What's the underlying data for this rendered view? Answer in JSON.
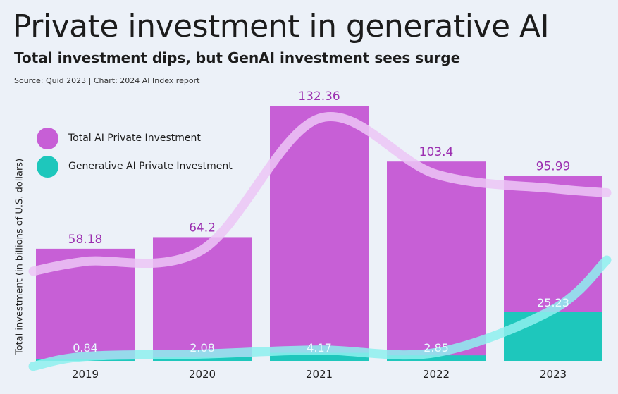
{
  "chart_data": {
    "type": "bar",
    "title": "Private investment in generative AI",
    "subtitle": "Total investment dips, but GenAI investment sees surge",
    "source": "Source: Quid 2023 | Chart: 2024 AI Index report",
    "ylabel": "Total investment (in billions of U.S. dollars)",
    "xlabel": "",
    "categories": [
      "2019",
      "2020",
      "2021",
      "2022",
      "2023"
    ],
    "ylim": [
      0,
      140
    ],
    "grid": false,
    "legend_position": "left",
    "series": [
      {
        "name": "Total AI Private Investment",
        "values": [
          58.18,
          64.2,
          132.36,
          103.4,
          95.99
        ],
        "labels": [
          "58.18",
          "64.2",
          "132.36",
          "103.4",
          "95.99"
        ],
        "color": "#c75fd6"
      },
      {
        "name": "Generative AI Private Investment",
        "values": [
          0.84,
          2.08,
          4.17,
          2.85,
          25.23
        ],
        "labels": [
          "0.84",
          "2.08",
          "4.17",
          "2.85",
          "25.23"
        ],
        "color": "#1ec7bc"
      }
    ],
    "label_colors": {
      "total": "#9b2fb0",
      "genai": "#eafcff"
    },
    "trend_colors": {
      "total": "#ecc6f6",
      "genai": "#8ef0ee"
    }
  }
}
